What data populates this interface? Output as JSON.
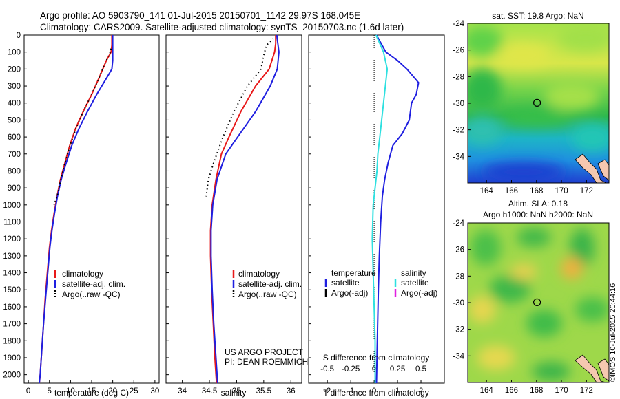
{
  "header": {
    "line1": "Argo profile: AO 5903790_141 01-Jul-2015 20150701_1142 29.97S 168.045E",
    "line2": "Climatology: CARS2009. Satellite-adjusted climatology: synTS_20150703.nc (1.6d later)"
  },
  "credits": {
    "project": "US ARGO PROJECT",
    "pi": "PI: DEAN ROEMMICH",
    "imos": "©IMOS 10-Jul-2015 20:44:16"
  },
  "colors": {
    "climatology": "#e8191a",
    "satellite": "#1f1fe0",
    "argo": "#000000",
    "salinity_satellite": "#2ee0e0",
    "salinity_argo": "#e020e0"
  },
  "chart_data": [
    {
      "type": "line",
      "panel": "temperature",
      "xlabel": "temperature (deg C)",
      "ylabel": "",
      "xlim": [
        -1,
        31
      ],
      "ylim": [
        2050,
        0
      ],
      "x_ticks": [
        0,
        5,
        10,
        15,
        20,
        25,
        30
      ],
      "y_ticks": [
        0,
        100,
        200,
        300,
        400,
        500,
        600,
        700,
        800,
        900,
        1000,
        1100,
        1200,
        1300,
        1400,
        1500,
        1600,
        1700,
        1800,
        1900,
        2000
      ],
      "legend": [
        "climatology",
        "satellite-adj. clim.",
        "Argo(..raw -QC)"
      ],
      "series": [
        {
          "name": "climatology",
          "style": "solid",
          "points": [
            [
              19.8,
              0
            ],
            [
              19.8,
              60
            ],
            [
              19.6,
              100
            ],
            [
              18.5,
              150
            ],
            [
              16.8,
              250
            ],
            [
              15,
              350
            ],
            [
              13,
              450
            ],
            [
              11.2,
              550
            ],
            [
              9.8,
              650
            ],
            [
              8.7,
              750
            ],
            [
              7.6,
              850
            ],
            [
              6.8,
              950
            ],
            [
              6.1,
              1050
            ],
            [
              5.5,
              1150
            ],
            [
              5.0,
              1250
            ],
            [
              4.5,
              1400
            ],
            [
              4.0,
              1550
            ],
            [
              3.6,
              1700
            ],
            [
              3.2,
              1850
            ],
            [
              2.8,
              2000
            ],
            [
              2.6,
              2050
            ]
          ]
        },
        {
          "name": "satellite-adj. clim.",
          "style": "solid",
          "points": [
            [
              20,
              0
            ],
            [
              20,
              80
            ],
            [
              20,
              150
            ],
            [
              19.8,
              200
            ],
            [
              18.6,
              250
            ],
            [
              16.2,
              350
            ],
            [
              14.0,
              450
            ],
            [
              12,
              550
            ],
            [
              10.3,
              650
            ],
            [
              9.0,
              750
            ],
            [
              7.8,
              850
            ],
            [
              6.9,
              950
            ],
            [
              6.2,
              1050
            ],
            [
              5.6,
              1150
            ],
            [
              5.1,
              1250
            ],
            [
              4.6,
              1400
            ],
            [
              4.1,
              1550
            ],
            [
              3.6,
              1700
            ],
            [
              3.2,
              1850
            ],
            [
              2.8,
              2000
            ],
            [
              2.6,
              2050
            ]
          ]
        },
        {
          "name": "Argo(..raw -QC)",
          "style": "dots",
          "points": [
            [
              19.6,
              80
            ],
            [
              19.3,
              110
            ],
            [
              18.3,
              160
            ],
            [
              16.6,
              260
            ],
            [
              14.8,
              360
            ],
            [
              13,
              450
            ],
            [
              11.3,
              550
            ],
            [
              9.9,
              650
            ],
            [
              8.7,
              750
            ],
            [
              7.7,
              850
            ],
            [
              6.8,
              950
            ],
            [
              6.1,
              1000
            ]
          ]
        }
      ]
    },
    {
      "type": "line",
      "panel": "salinity",
      "xlabel": "salinity",
      "ylabel": "",
      "xlim": [
        33.7,
        36.2
      ],
      "ylim": [
        2050,
        0
      ],
      "x_ticks": [
        34,
        34.5,
        35,
        35.5,
        36
      ],
      "legend": [
        "climatology",
        "satellite-adj. clim.",
        "Argo(..raw -QC)"
      ],
      "series": [
        {
          "name": "climatology",
          "style": "solid",
          "points": [
            [
              35.72,
              0
            ],
            [
              35.72,
              50
            ],
            [
              35.7,
              100
            ],
            [
              35.6,
              200
            ],
            [
              35.35,
              300
            ],
            [
              35.08,
              450
            ],
            [
              34.86,
              600
            ],
            [
              34.72,
              700
            ],
            [
              34.62,
              850
            ],
            [
              34.55,
              1000
            ],
            [
              34.52,
              1150
            ],
            [
              34.52,
              1300
            ],
            [
              34.54,
              1500
            ],
            [
              34.57,
              1700
            ],
            [
              34.6,
              1900
            ],
            [
              34.62,
              2000
            ],
            [
              34.63,
              2050
            ]
          ]
        },
        {
          "name": "satellite-adj. clim.",
          "style": "solid",
          "points": [
            [
              35.74,
              0
            ],
            [
              35.76,
              50
            ],
            [
              35.78,
              100
            ],
            [
              35.75,
              200
            ],
            [
              35.62,
              300
            ],
            [
              35.35,
              450
            ],
            [
              35.02,
              600
            ],
            [
              34.8,
              700
            ],
            [
              34.64,
              850
            ],
            [
              34.56,
              1000
            ],
            [
              34.53,
              1150
            ],
            [
              34.53,
              1300
            ],
            [
              34.55,
              1500
            ],
            [
              34.58,
              1700
            ],
            [
              34.62,
              1900
            ],
            [
              34.64,
              2000
            ],
            [
              34.65,
              2050
            ]
          ]
        },
        {
          "name": "Argo(..raw -QC)",
          "style": "dots",
          "points": [
            [
              35.68,
              20
            ],
            [
              35.55,
              60
            ],
            [
              35.5,
              120
            ],
            [
              35.45,
              200
            ],
            [
              35.2,
              300
            ],
            [
              34.95,
              450
            ],
            [
              34.75,
              600
            ],
            [
              34.58,
              750
            ],
            [
              34.48,
              850
            ],
            [
              34.44,
              950
            ]
          ]
        }
      ]
    },
    {
      "type": "line",
      "panel": "difference",
      "xlabel": "T difference from climatology",
      "x2label": "S difference from climatology",
      "ylabel": "",
      "xlim": [
        -2.8,
        3.0
      ],
      "x2lim": [
        -0.7,
        0.75
      ],
      "ylim": [
        2050,
        0
      ],
      "x_ticks": [
        -2,
        -1,
        0,
        1,
        2
      ],
      "x2_ticks": [
        -0.5,
        -0.25,
        0,
        0.25,
        0.5
      ],
      "x2_tick_labels": [
        "-0.5",
        "-0.25",
        "0",
        "0.25",
        "0.5"
      ],
      "legend_groups": [
        {
          "title": "temperature",
          "entries": [
            "satellite",
            "Argo(-adj)"
          ]
        },
        {
          "title": "salinity",
          "entries": [
            "satellite",
            "Argo(-adj)"
          ]
        }
      ],
      "series": [
        {
          "name": "temperature satellite",
          "axis": "T",
          "points": [
            [
              0.1,
              0
            ],
            [
              0.3,
              50
            ],
            [
              0.5,
              100
            ],
            [
              1.0,
              150
            ],
            [
              1.4,
              200
            ],
            [
              1.9,
              280
            ],
            [
              1.8,
              350
            ],
            [
              1.6,
              400
            ],
            [
              1.5,
              500
            ],
            [
              1.2,
              580
            ],
            [
              0.8,
              650
            ],
            [
              0.6,
              750
            ],
            [
              0.45,
              850
            ],
            [
              0.35,
              950
            ],
            [
              0.28,
              1100
            ],
            [
              0.22,
              1300
            ],
            [
              0.18,
              1500
            ],
            [
              0.15,
              1700
            ],
            [
              0.12,
              1900
            ],
            [
              0.1,
              2050
            ]
          ]
        },
        {
          "name": "salinity satellite",
          "axis": "S",
          "points": [
            [
              0.02,
              0
            ],
            [
              0.06,
              50
            ],
            [
              0.1,
              100
            ],
            [
              0.14,
              200
            ],
            [
              0.12,
              300
            ],
            [
              0.1,
              400
            ],
            [
              0.08,
              500
            ],
            [
              0.06,
              600
            ],
            [
              0.04,
              700
            ],
            [
              0.03,
              800
            ],
            [
              0.01,
              900
            ],
            [
              -0.01,
              1000
            ],
            [
              -0.02,
              1200
            ],
            [
              -0.01,
              1400
            ],
            [
              0.0,
              1600
            ],
            [
              0.01,
              1800
            ],
            [
              0.01,
              2050
            ]
          ]
        }
      ]
    },
    {
      "type": "heatmap",
      "panel": "sst-map",
      "title": "sat. SST: 19.8 Argo: NaN",
      "xlim": [
        162.5,
        173.8
      ],
      "ylim": [
        -36,
        -24
      ],
      "x_ticks": [
        164,
        166,
        168,
        170,
        172
      ],
      "y_ticks": [
        -24,
        -26,
        -28,
        -30,
        -32,
        -34
      ],
      "argo_position": [
        168.045,
        -29.97
      ]
    },
    {
      "type": "heatmap",
      "panel": "sla-map",
      "title": "Altim. SLA: 0.18",
      "subtitle": "Argo h1000: NaN h2000: NaN",
      "xlim": [
        162.5,
        173.8
      ],
      "ylim": [
        -36,
        -24
      ],
      "x_ticks": [
        164,
        166,
        168,
        170,
        172
      ],
      "y_ticks": [
        -24,
        -26,
        -28,
        -30,
        -32,
        -34
      ],
      "argo_position": [
        168.045,
        -29.97
      ]
    }
  ]
}
